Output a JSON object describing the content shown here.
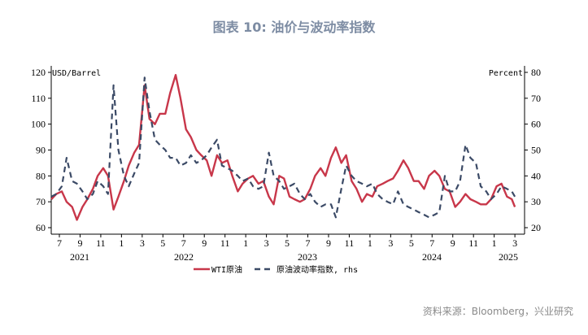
{
  "title": "图表 10: 油价与波动率指数",
  "source": "资料来源：Bloomberg，兴业研究",
  "chart_data": {
    "type": "line",
    "left_axis": {
      "label": "USD/Barrel",
      "range": [
        60,
        120
      ],
      "ticks": [
        "60",
        "70",
        "80",
        "90",
        "100",
        "110",
        "120"
      ]
    },
    "right_axis": {
      "label": "Percent",
      "range": [
        20,
        80
      ],
      "ticks": [
        "20",
        "30",
        "40",
        "50",
        "60",
        "70",
        "80"
      ]
    },
    "x_month_ticks": [
      "7",
      "9",
      "11",
      "1",
      "3",
      "5",
      "7",
      "9",
      "11",
      "1",
      "3",
      "5",
      "7",
      "9",
      "11",
      "1",
      "3",
      "5",
      "7",
      "9",
      "11",
      "1",
      "3"
    ],
    "x_year_labels": [
      "2021",
      "2022",
      "2023",
      "2024",
      "2025"
    ],
    "x": [
      "2021-06-08",
      "2021-06-22",
      "2021-07-08",
      "2021-07-22",
      "2021-08-08",
      "2021-08-22",
      "2021-09-08",
      "2021-09-22",
      "2021-10-08",
      "2021-10-22",
      "2021-11-08",
      "2021-11-22",
      "2021-12-08",
      "2021-12-22",
      "2022-01-08",
      "2022-01-22",
      "2022-02-08",
      "2022-02-22",
      "2022-03-08",
      "2022-03-22",
      "2022-04-08",
      "2022-04-22",
      "2022-05-08",
      "2022-05-22",
      "2022-06-08",
      "2022-06-22",
      "2022-07-08",
      "2022-07-22",
      "2022-08-08",
      "2022-08-22",
      "2022-09-08",
      "2022-09-22",
      "2022-10-08",
      "2022-10-22",
      "2022-11-08",
      "2022-11-22",
      "2022-12-08",
      "2022-12-22",
      "2023-01-08",
      "2023-01-22",
      "2023-02-08",
      "2023-02-22",
      "2023-03-08",
      "2023-03-22",
      "2023-04-08",
      "2023-04-22",
      "2023-05-08",
      "2023-05-22",
      "2023-06-08",
      "2023-06-22",
      "2023-07-08",
      "2023-07-22",
      "2023-08-08",
      "2023-08-22",
      "2023-09-08",
      "2023-09-22",
      "2023-10-08",
      "2023-10-22",
      "2023-11-08",
      "2023-11-22",
      "2023-12-08",
      "2023-12-22",
      "2024-01-08",
      "2024-01-22",
      "2024-02-08",
      "2024-02-22",
      "2024-03-08",
      "2024-03-22",
      "2024-04-08",
      "2024-04-22",
      "2024-05-08",
      "2024-05-22",
      "2024-06-08",
      "2024-06-22",
      "2024-07-08",
      "2024-07-22",
      "2024-08-08",
      "2024-08-22",
      "2024-09-08",
      "2024-09-22",
      "2024-10-08",
      "2024-10-22",
      "2024-11-08",
      "2024-11-22",
      "2024-12-08",
      "2024-12-22",
      "2025-01-08",
      "2025-01-22",
      "2025-02-08",
      "2025-02-22",
      "2025-03-01"
    ],
    "series": [
      {
        "name": "WTI原油",
        "axis": "left",
        "color": "#c8374a",
        "style": "solid",
        "values": [
          71,
          73,
          74,
          70,
          68,
          63,
          68,
          71,
          75,
          80,
          83,
          80,
          67,
          72,
          78,
          84,
          89,
          92,
          115,
          102,
          100,
          104,
          104,
          112,
          119,
          110,
          98,
          95,
          90,
          88,
          86,
          80,
          88,
          85,
          86,
          80,
          74,
          77,
          79,
          80,
          77,
          78,
          72,
          69,
          80,
          79,
          72,
          71,
          70,
          71,
          75,
          80,
          83,
          80,
          87,
          91,
          85,
          88,
          78,
          75,
          70,
          73,
          72,
          76,
          77,
          78,
          79,
          82,
          86,
          83,
          78,
          78,
          75,
          80,
          82,
          80,
          75,
          74,
          68,
          70,
          73,
          71,
          70,
          69,
          69,
          71,
          76,
          77,
          72,
          71,
          68
        ]
      },
      {
        "name": "原油波动率指数, rhs",
        "axis": "right",
        "color": "#3b4a66",
        "style": "dashed",
        "values": [
          32,
          33,
          36,
          47,
          38,
          37,
          34,
          31,
          33,
          38,
          36,
          33,
          75,
          50,
          40,
          36,
          41,
          45,
          78,
          65,
          54,
          52,
          50,
          47,
          47,
          44,
          45,
          48,
          45,
          46,
          48,
          51,
          54,
          44,
          43,
          42,
          40,
          38,
          39,
          36,
          35,
          36,
          49,
          40,
          38,
          35,
          36,
          37,
          33,
          31,
          33,
          30,
          28,
          29,
          29,
          24,
          35,
          44,
          40,
          38,
          37,
          36,
          37,
          33,
          31,
          30,
          29,
          34,
          29,
          28,
          27,
          26,
          25,
          24,
          25,
          26,
          40,
          34,
          34,
          38,
          52,
          47,
          45,
          36,
          34,
          31,
          33,
          36,
          35,
          34,
          32
        ]
      }
    ],
    "legend_position": "bottom",
    "grid": false
  }
}
